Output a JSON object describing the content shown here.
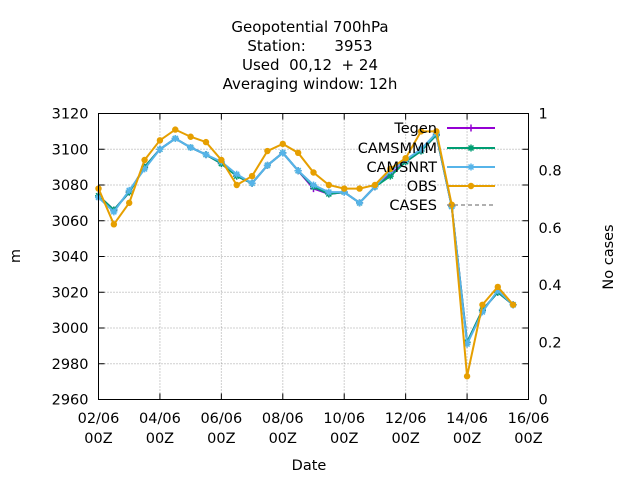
{
  "chart_data": {
    "type": "line",
    "title_lines": [
      "Geopotential 700hPa",
      "Station:      3953",
      "Used  00,12  + 24",
      "Averaging window: 12h"
    ],
    "xlabel": "Date",
    "ylabel": "m",
    "y2label": "No cases",
    "x_tick_lines": [
      [
        "02/06",
        "00Z"
      ],
      [
        "04/06",
        "00Z"
      ],
      [
        "06/06",
        "00Z"
      ],
      [
        "08/06",
        "00Z"
      ],
      [
        "10/06",
        "00Z"
      ],
      [
        "12/06",
        "00Z"
      ],
      [
        "14/06",
        "00Z"
      ],
      [
        "16/06",
        "00Z"
      ]
    ],
    "xlim": [
      "02/06 00Z",
      "16/06 00Z"
    ],
    "x_dates": [
      "02/06 00Z",
      "02/06 12Z",
      "03/06 00Z",
      "03/06 12Z",
      "04/06 00Z",
      "04/06 12Z",
      "05/06 00Z",
      "05/06 12Z",
      "06/06 00Z",
      "06/06 12Z",
      "07/06 00Z",
      "07/06 12Z",
      "08/06 00Z",
      "08/06 12Z",
      "09/06 00Z",
      "09/06 12Z",
      "10/06 00Z",
      "10/06 12Z",
      "11/06 00Z",
      "11/06 12Z",
      "12/06 00Z",
      "12/06 12Z",
      "13/06 00Z",
      "13/06 12Z",
      "14/06 00Z",
      "14/06 12Z",
      "15/06 00Z",
      "15/06 12Z"
    ],
    "ylim": [
      2960,
      3120
    ],
    "yticks": [
      2960,
      2980,
      3000,
      3020,
      3040,
      3060,
      3080,
      3100,
      3120
    ],
    "y2lim": [
      0,
      1
    ],
    "y2ticks": [
      "0",
      "0.2",
      "0.4",
      "0.6",
      "0.8",
      "1"
    ],
    "grid": true,
    "legend_position": "top-right",
    "series": [
      {
        "name": "Tegen",
        "color": "#9400d3",
        "marker": "plus",
        "values": [
          3074,
          3066,
          3076,
          3090,
          3100,
          3106,
          3101,
          3097,
          3092,
          3085,
          3081,
          3091,
          3098,
          3088,
          3078,
          3075,
          3076,
          3070,
          3079,
          3086,
          3093,
          3099,
          3108,
          3068,
          2992,
          3010,
          3020,
          3013
        ]
      },
      {
        "name": "CAMSMMM",
        "color": "#009e73",
        "marker": "star",
        "values": [
          3074,
          3066,
          3076,
          3090,
          3100,
          3106,
          3101,
          3097,
          3092,
          3085,
          3081,
          3091,
          3098,
          3088,
          3079,
          3075,
          3076,
          3070,
          3079,
          3085,
          3093,
          3099,
          3108,
          3068,
          2992,
          3010,
          3020,
          3013
        ]
      },
      {
        "name": "CAMSNRT",
        "color": "#56b4e9",
        "marker": "star",
        "values": [
          3073,
          3065,
          3077,
          3089,
          3100,
          3106,
          3101,
          3097,
          3093,
          3086,
          3081,
          3091,
          3098,
          3088,
          3080,
          3076,
          3076,
          3070,
          3079,
          3088,
          3094,
          3100,
          3109,
          3068,
          2991,
          3009,
          3021,
          3013
        ]
      },
      {
        "name": "OBS",
        "color": "#e69f00",
        "marker": "dot",
        "values": [
          3078,
          3058,
          3070,
          3094,
          3105,
          3111,
          3107,
          3104,
          3094,
          3080,
          3085,
          3099,
          3103,
          3098,
          3087,
          3080,
          3078,
          3078,
          3080,
          3089,
          3095,
          3110,
          3110,
          3069,
          2973,
          3013,
          3023,
          3013
        ]
      },
      {
        "name": "CASES",
        "color": "#808080",
        "marker": "none",
        "style": "dashed",
        "values": []
      }
    ]
  }
}
